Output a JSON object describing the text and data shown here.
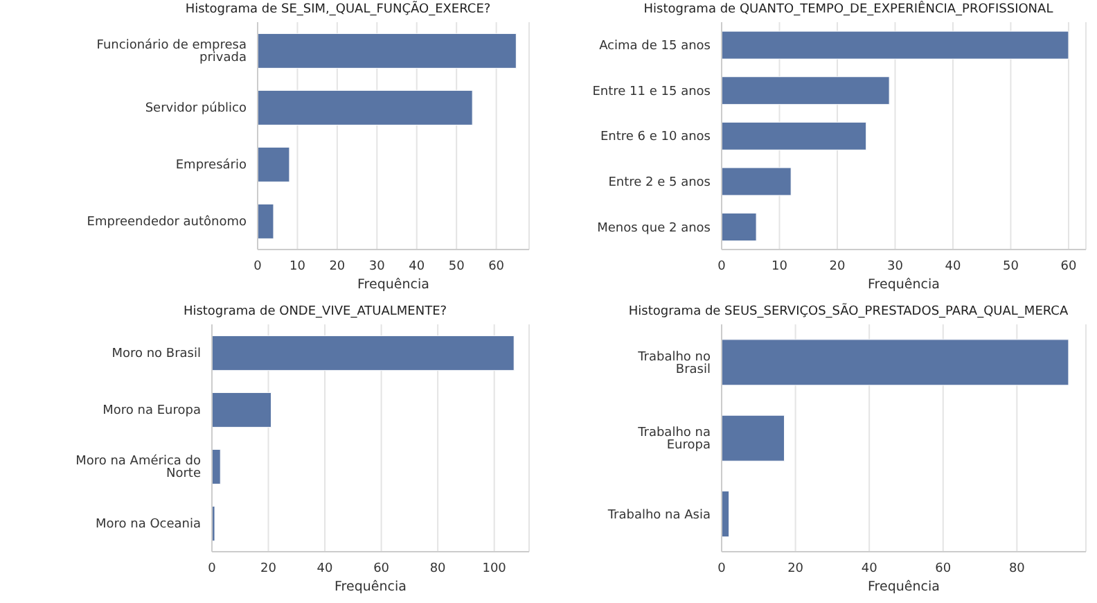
{
  "chart_data": [
    {
      "type": "bar",
      "orientation": "horizontal",
      "title": "Histograma de SE_SIM,_QUAL_FUNÇÃO_EXERCE?",
      "xlabel": "Frequência",
      "categories": [
        "Funcionário de empresa privada",
        "Servidor público",
        "Empresário",
        "Empreendedor autônomo"
      ],
      "values": [
        65,
        54,
        8,
        4
      ],
      "color": "#5975a4",
      "xlim": [
        0,
        68.25
      ],
      "xticks": [
        0,
        10,
        20,
        30,
        40,
        50,
        60
      ],
      "grid": "x"
    },
    {
      "type": "bar",
      "orientation": "horizontal",
      "title": "Histograma de QUANTO_TEMPO_DE_EXPERIÊNCIA_PROFISSIONAL",
      "xlabel": "Frequência",
      "categories": [
        "Acima de 15 anos",
        "Entre 11 e 15 anos",
        "Entre 6 e 10 anos",
        "Entre 2 e 5 anos",
        "Menos que 2 anos"
      ],
      "values": [
        60,
        29,
        25,
        12,
        6
      ],
      "color": "#5975a4",
      "xlim": [
        0,
        63
      ],
      "xticks": [
        0,
        10,
        20,
        30,
        40,
        50,
        60
      ],
      "grid": "x"
    },
    {
      "type": "bar",
      "orientation": "horizontal",
      "title": "Histograma de ONDE_VIVE_ATUALMENTE?",
      "xlabel": "Frequência",
      "categories": [
        "Moro no Brasil",
        "Moro na Europa",
        "Moro na América do Norte",
        "Moro na Oceania"
      ],
      "values": [
        107,
        21,
        3,
        1
      ],
      "color": "#5975a4",
      "xlim": [
        0,
        112.35
      ],
      "xticks": [
        0,
        20,
        40,
        60,
        80,
        100
      ],
      "grid": "x"
    },
    {
      "type": "bar",
      "orientation": "horizontal",
      "title": "Histograma de SEUS_SERVIÇOS_SÃO_PRESTADOS_PARA_QUAL_MERCA",
      "xlabel": "Frequência",
      "categories": [
        "Trabalho no Brasil",
        "Trabalho na Europa",
        "Trabalho na Asia"
      ],
      "values": [
        94,
        17,
        2
      ],
      "color": "#5975a4",
      "xlim": [
        0,
        98.7
      ],
      "xticks": [
        0,
        20,
        40,
        60,
        80
      ],
      "grid": "x"
    }
  ]
}
